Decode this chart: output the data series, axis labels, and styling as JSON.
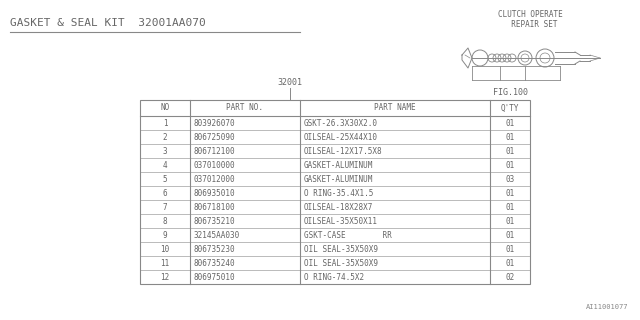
{
  "title": "GASKET & SEAL KIT  32001AA070",
  "background_color": "#ffffff",
  "line_color": "#888888",
  "text_color": "#666666",
  "fig_label": "FIG.100",
  "ref_number": "32001",
  "watermark": "AI11001077",
  "clutch_label": "CLUTCH OPERATE\n  REPAIR SET",
  "table_headers": [
    "NO",
    "PART NO.",
    "PART NAME",
    "Q'TY"
  ],
  "table_rows": [
    [
      "1",
      "803926070",
      "GSKT-26.3X30X2.0",
      "01"
    ],
    [
      "2",
      "806725090",
      "OILSEAL-25X44X10",
      "01"
    ],
    [
      "3",
      "806712100",
      "OILSEAL-12X17.5X8",
      "01"
    ],
    [
      "4",
      "037010000",
      "GASKET-ALUMINUM",
      "01"
    ],
    [
      "5",
      "037012000",
      "GASKET-ALUMINUM",
      "03"
    ],
    [
      "6",
      "806935010",
      "O RING-35.4X1.5",
      "01"
    ],
    [
      "7",
      "806718100",
      "OILSEAL-18X28X7",
      "01"
    ],
    [
      "8",
      "806735210",
      "OILSEAL-35X50X11",
      "01"
    ],
    [
      "9",
      "32145AA030",
      "GSKT-CASE        RR",
      "01"
    ],
    [
      "10",
      "806735230",
      "OIL SEAL-35X50X9",
      "01"
    ],
    [
      "11",
      "806735240",
      "OIL SEAL-35X50X9",
      "01"
    ],
    [
      "12",
      "806975010",
      "O RING-74.5X2",
      "02"
    ]
  ]
}
